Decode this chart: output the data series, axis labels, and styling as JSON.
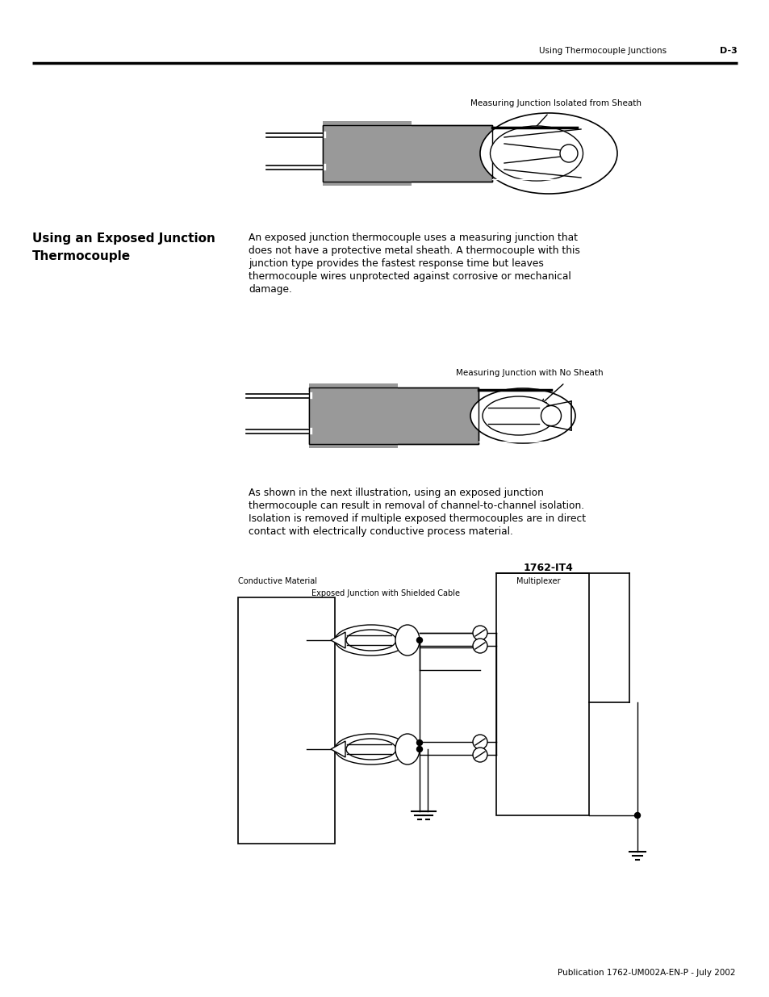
{
  "page_header_text": "Using Thermocouple Junctions",
  "page_header_num": "D-3",
  "diagram1_label": "Measuring Junction Isolated from Sheath",
  "diagram2_label": "Measuring Junction with No Sheath",
  "section_title_line1": "Using an Exposed Junction",
  "section_title_line2": "Thermocouple",
  "body_text_line1": "An exposed junction thermocouple uses a measuring junction that",
  "body_text_line2": "does not have a protective metal sheath. A thermocouple with this",
  "body_text_line3": "junction type provides the fastest response time but leaves",
  "body_text_line4": "thermocouple wires unprotected against corrosive or mechanical",
  "body_text_line5": "damage.",
  "bottom_text_line1": "As shown in the next illustration, using an exposed junction",
  "bottom_text_line2": "thermocouple can result in removal of channel-to-channel isolation.",
  "bottom_text_line3": "Isolation is removed if multiple exposed thermocouples are in direct",
  "bottom_text_line4": "contact with electrically conductive process material.",
  "circuit_title": "1762-IT4",
  "circuit_label_left": "Conductive Material",
  "circuit_label_exp": "Exposed Junction with Shielded Cable",
  "circuit_label_mux": "Multiplexer",
  "footer_text": "Publication 1762-UM002A-EN-P - July 2002",
  "gray_color": "#999999",
  "lw": 1.2
}
